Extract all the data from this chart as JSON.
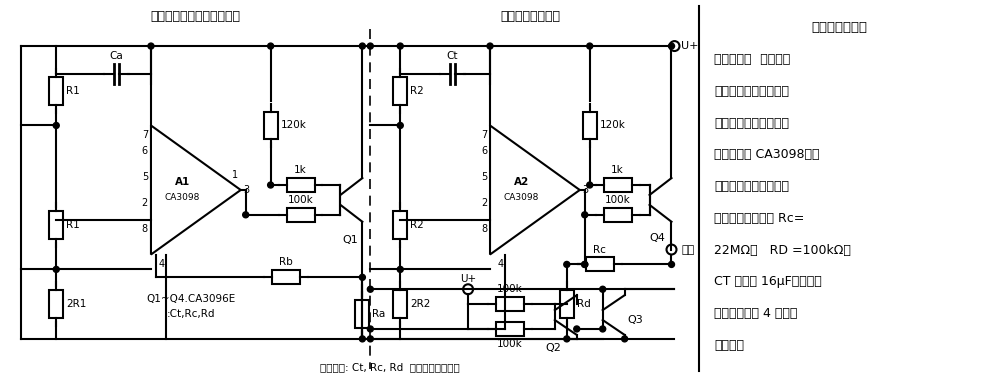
{
  "bg_color": "#ffffff",
  "line_color": "#000000",
  "fig_width": 9.88,
  "fig_height": 3.77,
  "title_left": "充电电路用精密脉冲发生器",
  "title_mid": "定时（充电）电路",
  "right_text_line0": "小电容长持续时",
  "right_text_lines": [
    "间的定时器  当需要几",
    "个小时的延迟时间时，",
    "采用两个双输人的精确",
    "电平检测器 CA3098，不",
    "需要使用大容量、低漏",
    "电的电容器。如果 Rc=",
    "22MΩ、   RD =100kΩ、",
    "CT 只需要 16μF，就可以",
    "得到延迟时间 4 小时的",
    "定时器。"
  ],
  "bottom_text": "充电电路: Ct, Rc, Rd  充电电路遥通控制",
  "label_q1q4": "Q1~Q4.CA3096E",
  "label_ctrcrd": ":Ct,Rc,Rd"
}
